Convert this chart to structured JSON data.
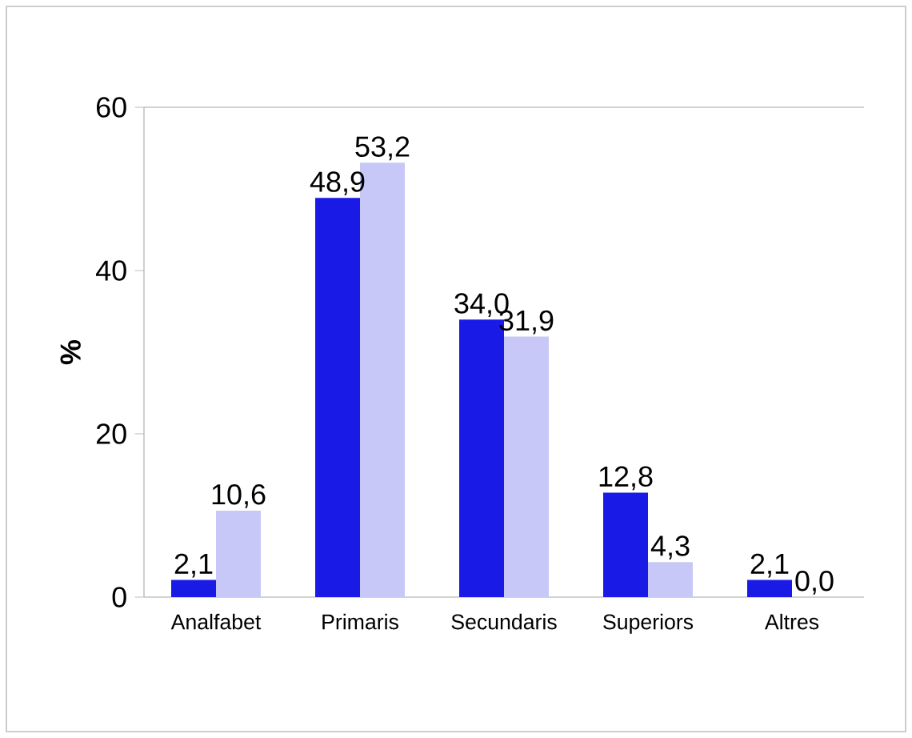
{
  "chart_data": {
    "type": "bar",
    "ylabel": "%",
    "categories": [
      "Analfabet",
      "Primaris",
      "Secundaris",
      "Superiors",
      "Altres"
    ],
    "ylim": [
      0,
      60
    ],
    "yticks": [
      0,
      20,
      40,
      60
    ],
    "series": [
      {
        "color": "#1a1ae6",
        "values": [
          2.1,
          48.9,
          34.0,
          12.8,
          2.1
        ],
        "value_labels": [
          "2,1",
          "48,9",
          "34,0",
          "12,8",
          "2,1"
        ]
      },
      {
        "color": "#c8c8f8",
        "values": [
          10.6,
          53.2,
          31.9,
          4.3,
          0.0
        ],
        "value_labels": [
          "10,6",
          "53,2",
          "31,9",
          "4,3",
          "0,0"
        ]
      }
    ]
  }
}
